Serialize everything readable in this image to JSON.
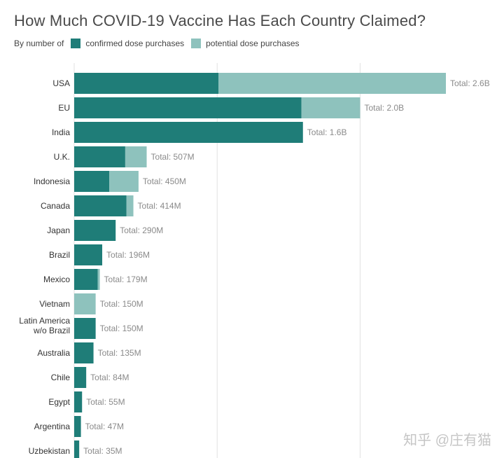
{
  "chart_data": {
    "type": "bar",
    "orientation": "horizontal",
    "stacked": true,
    "title": "How Much COVID-19 Vaccine Has Each Country Claimed?",
    "legend": {
      "prefix": "By number of",
      "placement": "top-left"
    },
    "colors": {
      "confirmed": "#1f7d78",
      "potential": "#8ec2bd",
      "grid": "#e2e2e2"
    },
    "categories": [
      "USA",
      "EU",
      "India",
      "U.K.",
      "Indonesia",
      "Canada",
      "Japan",
      "Brazil",
      "Mexico",
      "Vietnam",
      "Latin America w/o Brazil",
      "Australia",
      "Chile",
      "Egypt",
      "Argentina",
      "Uzbekistan"
    ],
    "series": [
      {
        "name": "confirmed dose purchases",
        "values": [
          1010,
          1590,
          1600,
          357,
          245,
          366,
          290,
          196,
          165,
          0,
          150,
          135,
          84,
          55,
          47,
          35
        ]
      },
      {
        "name": "potential dose purchases",
        "values": [
          1590,
          410,
          0,
          150,
          205,
          48,
          0,
          0,
          14,
          150,
          0,
          0,
          0,
          0,
          0,
          0
        ]
      }
    ],
    "total_labels": [
      "Total: 2.6B",
      "Total: 2.0B",
      "Total: 1.6B",
      "Total: 507M",
      "Total: 450M",
      "Total: 414M",
      "Total: 290M",
      "Total: 196M",
      "Total: 179M",
      "Total: 150M",
      "Total: 150M",
      "Total: 135M",
      "Total: 84M",
      "Total: 55M",
      "Total: 47M",
      "Total: 35M"
    ],
    "xlim": [
      0,
      2600
    ],
    "unit": "millions of doses",
    "grid": true
  },
  "watermark": "知乎 @庄有猫"
}
